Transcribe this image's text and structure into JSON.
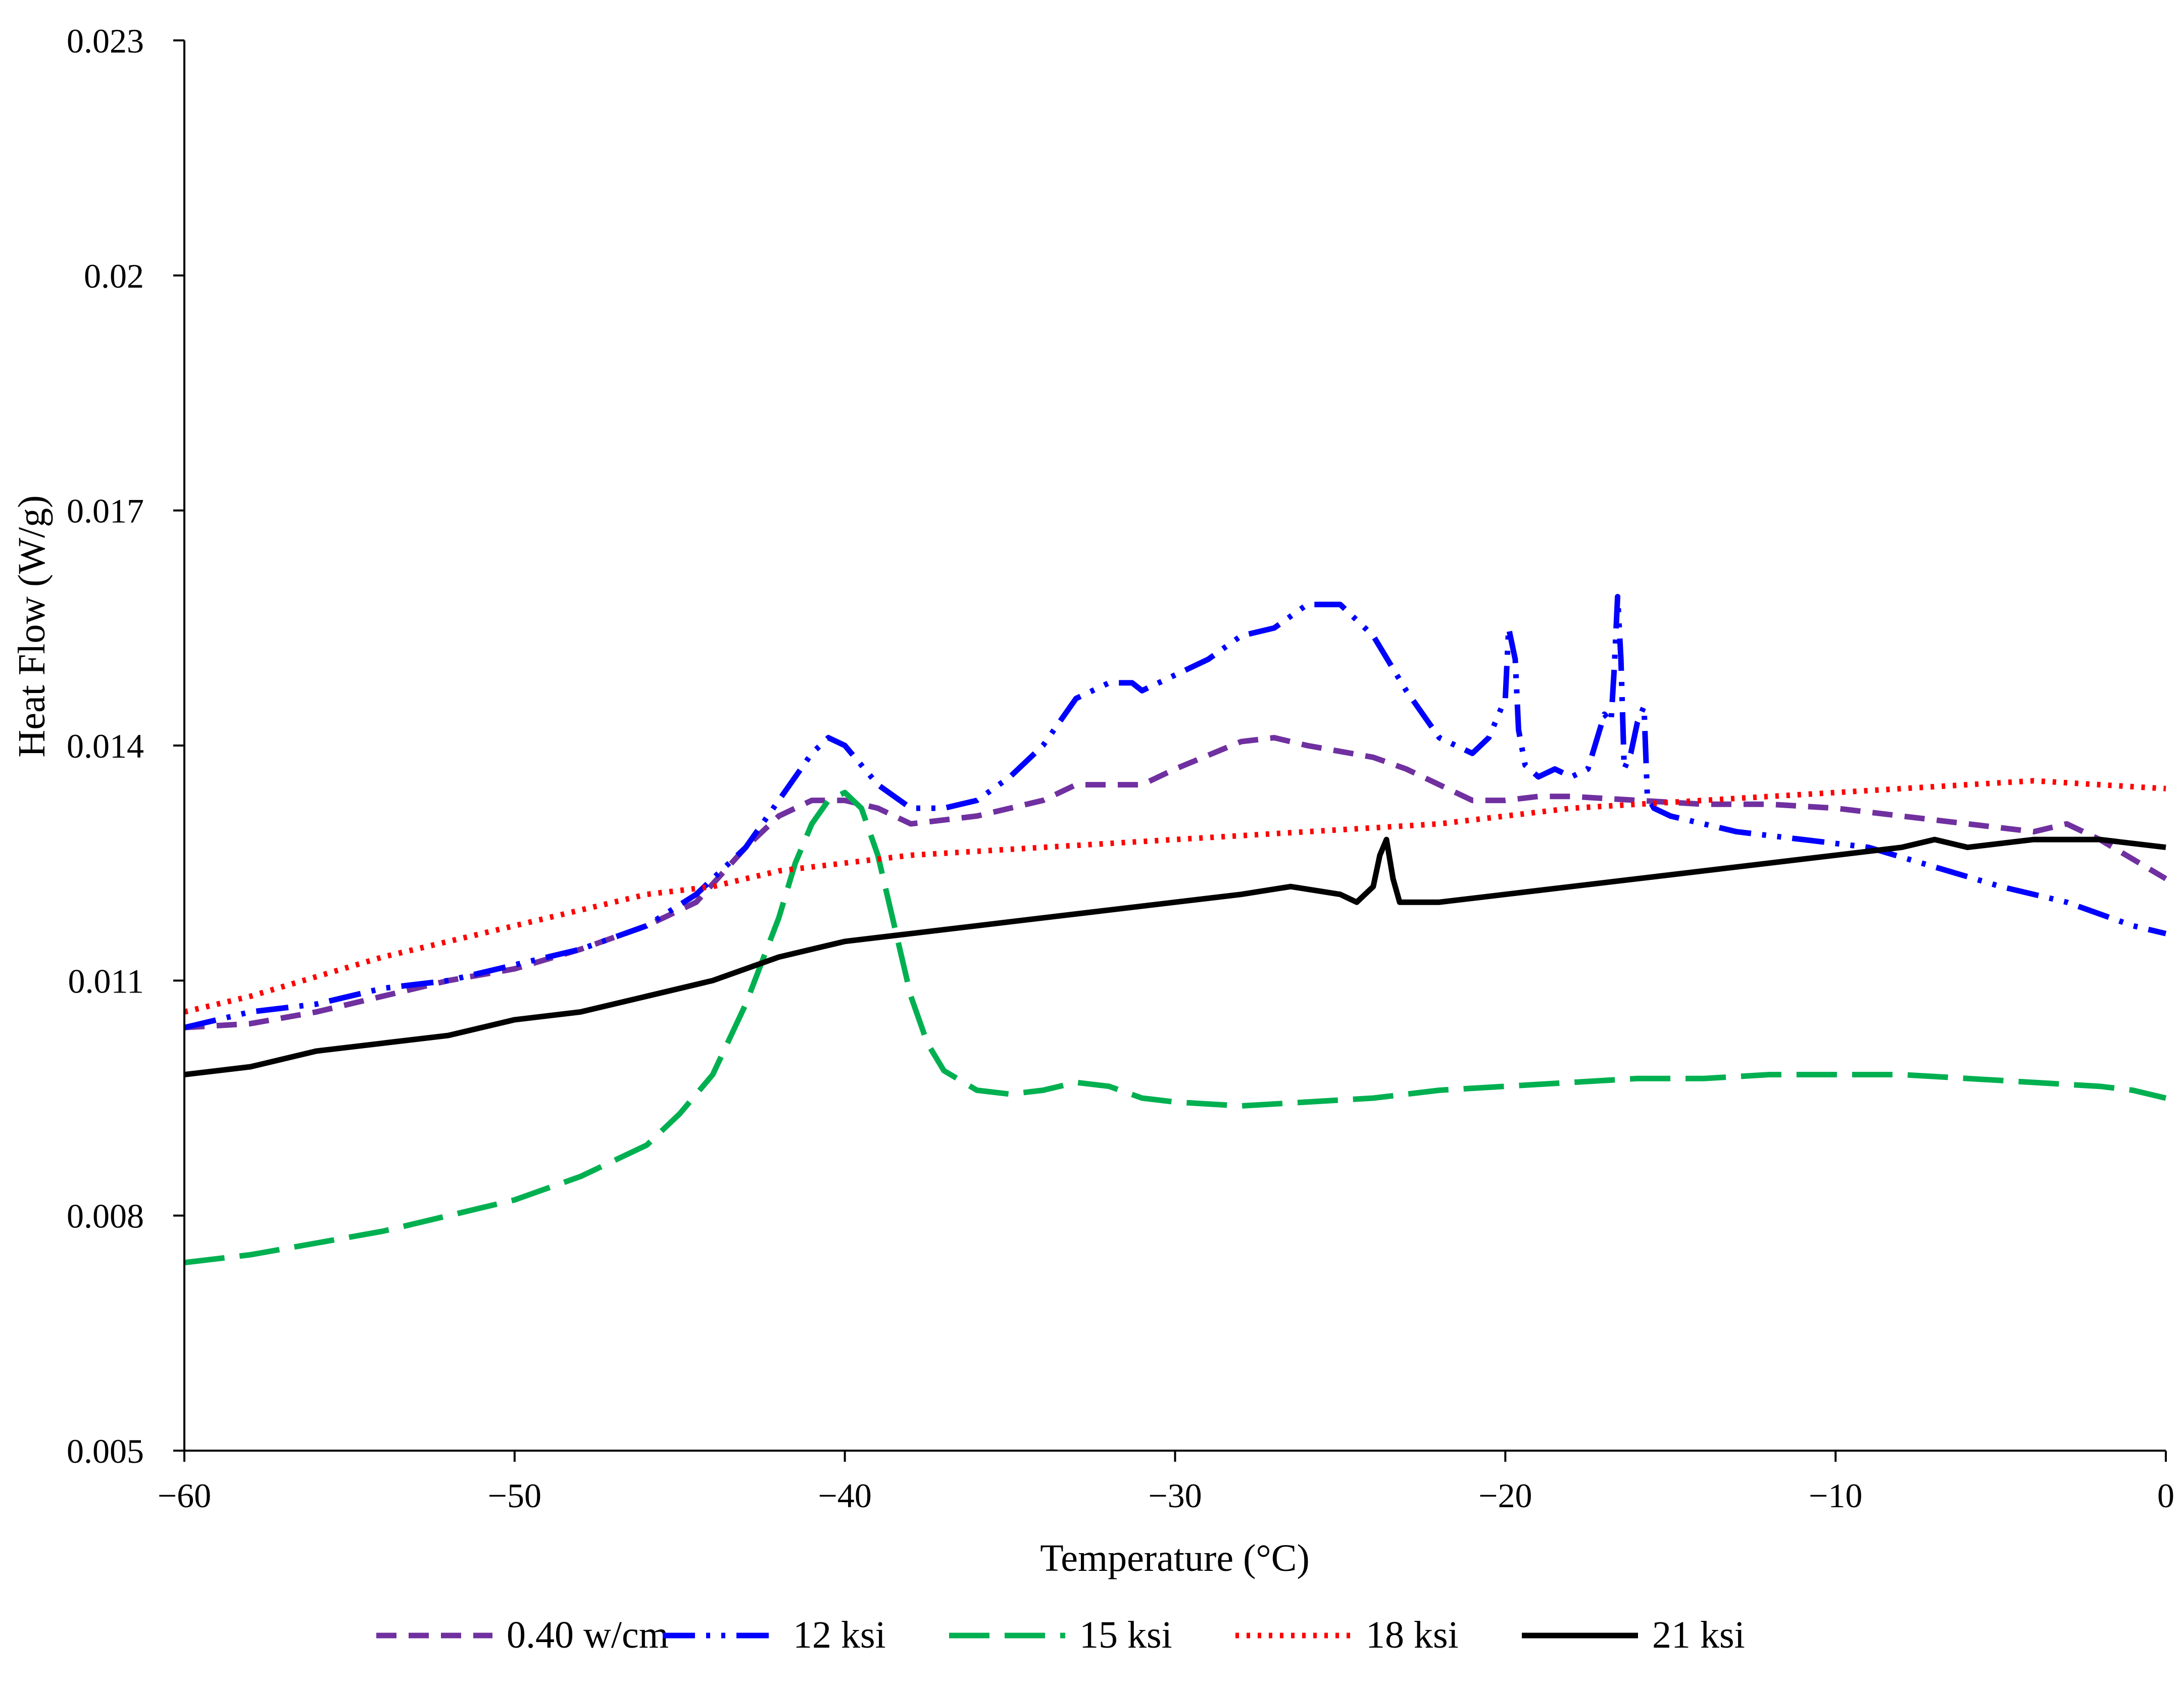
{
  "chart_data": {
    "type": "line",
    "xlabel": "Temperature (°C)",
    "ylabel": "Heat Flow (W/g)",
    "xlim": [
      -60,
      0
    ],
    "ylim": [
      0.005,
      0.023
    ],
    "x_ticks": [
      -60,
      -50,
      -40,
      -30,
      -20,
      -10,
      0
    ],
    "x_tick_labels": [
      "−60",
      "−50",
      "−40",
      "−30",
      "−20",
      "−10",
      "0"
    ],
    "y_ticks": [
      0.005,
      0.008,
      0.011,
      0.014,
      0.017,
      0.02,
      0.023
    ],
    "y_tick_labels": [
      "0.005",
      "0.008",
      "0.011",
      "0.014",
      "0.017",
      "0.02",
      "0.023"
    ],
    "grid": false,
    "legend_position": "bottom",
    "series": [
      {
        "name": "0.40 w/cm",
        "color": "#7030A0",
        "dash": "dashed",
        "points": [
          [
            -60,
            0.0104
          ],
          [
            -58,
            0.01045
          ],
          [
            -56,
            0.0106
          ],
          [
            -54,
            0.0108
          ],
          [
            -52,
            0.011
          ],
          [
            -50,
            0.01115
          ],
          [
            -48,
            0.0114
          ],
          [
            -46,
            0.0117
          ],
          [
            -44.5,
            0.012
          ],
          [
            -43,
            0.0127
          ],
          [
            -42,
            0.0131
          ],
          [
            -41,
            0.0133
          ],
          [
            -40,
            0.0133
          ],
          [
            -39,
            0.0132
          ],
          [
            -38,
            0.013
          ],
          [
            -36,
            0.0131
          ],
          [
            -34,
            0.0133
          ],
          [
            -33,
            0.0135
          ],
          [
            -31,
            0.0135
          ],
          [
            -30,
            0.0137
          ],
          [
            -28,
            0.01405
          ],
          [
            -27,
            0.0141
          ],
          [
            -26,
            0.014
          ],
          [
            -24,
            0.01385
          ],
          [
            -23,
            0.0137
          ],
          [
            -22,
            0.0135
          ],
          [
            -21,
            0.0133
          ],
          [
            -20,
            0.0133
          ],
          [
            -19,
            0.01335
          ],
          [
            -18,
            0.01335
          ],
          [
            -16,
            0.0133
          ],
          [
            -14,
            0.01325
          ],
          [
            -12,
            0.01325
          ],
          [
            -10,
            0.0132
          ],
          [
            -8,
            0.0131
          ],
          [
            -6,
            0.013
          ],
          [
            -4,
            0.0129
          ],
          [
            -3,
            0.013
          ],
          [
            -2,
            0.0128
          ],
          [
            -1,
            0.01255
          ],
          [
            0,
            0.0123
          ]
        ]
      },
      {
        "name": "12 ksi",
        "color": "#0000FF",
        "dash": "dash-dot-dot",
        "points": [
          [
            -60,
            0.0104
          ],
          [
            -58,
            0.0106
          ],
          [
            -56,
            0.0107
          ],
          [
            -54,
            0.0109
          ],
          [
            -52,
            0.011
          ],
          [
            -50,
            0.0112
          ],
          [
            -48,
            0.0114
          ],
          [
            -46,
            0.0117
          ],
          [
            -44.5,
            0.0121
          ],
          [
            -43,
            0.0127
          ],
          [
            -42,
            0.0133
          ],
          [
            -41,
            0.0139
          ],
          [
            -40.5,
            0.0141
          ],
          [
            -40,
            0.014
          ],
          [
            -39,
            0.0135
          ],
          [
            -38,
            0.0132
          ],
          [
            -37,
            0.0132
          ],
          [
            -36,
            0.0133
          ],
          [
            -35,
            0.0136
          ],
          [
            -34,
            0.014
          ],
          [
            -33,
            0.0146
          ],
          [
            -32,
            0.0148
          ],
          [
            -31.3,
            0.0148
          ],
          [
            -31,
            0.0147
          ],
          [
            -30,
            0.0149
          ],
          [
            -29,
            0.0151
          ],
          [
            -28,
            0.0154
          ],
          [
            -27,
            0.0155
          ],
          [
            -26,
            0.0158
          ],
          [
            -25,
            0.0158
          ],
          [
            -24,
            0.0154
          ],
          [
            -23,
            0.0147
          ],
          [
            -22,
            0.0141
          ],
          [
            -21,
            0.0139
          ],
          [
            -20.5,
            0.0141
          ],
          [
            -20,
            0.0146
          ],
          [
            -19.9,
            0.0155
          ],
          [
            -19.7,
            0.0151
          ],
          [
            -19.6,
            0.0142
          ],
          [
            -19.4,
            0.01375
          ],
          [
            -19,
            0.0136
          ],
          [
            -18.5,
            0.0137
          ],
          [
            -18,
            0.0136
          ],
          [
            -17.5,
            0.0137
          ],
          [
            -17,
            0.0144
          ],
          [
            -16.8,
            0.0143
          ],
          [
            -16.7,
            0.015
          ],
          [
            -16.6,
            0.0159
          ],
          [
            -16.5,
            0.0151
          ],
          [
            -16.4,
            0.0137
          ],
          [
            -16.2,
            0.0139
          ],
          [
            -16,
            0.0143
          ],
          [
            -15.8,
            0.0145
          ],
          [
            -15.7,
            0.01335
          ],
          [
            -15.5,
            0.0132
          ],
          [
            -15,
            0.0131
          ],
          [
            -13,
            0.0129
          ],
          [
            -11,
            0.0128
          ],
          [
            -9,
            0.0127
          ],
          [
            -7,
            0.01245
          ],
          [
            -5,
            0.0122
          ],
          [
            -3,
            0.012
          ],
          [
            -1,
            0.0117
          ],
          [
            0,
            0.0116
          ]
        ]
      },
      {
        "name": "15 ksi",
        "color": "#00B050",
        "dash": "long-dash",
        "points": [
          [
            -60,
            0.0074
          ],
          [
            -58,
            0.0075
          ],
          [
            -56,
            0.00765
          ],
          [
            -54,
            0.0078
          ],
          [
            -52,
            0.008
          ],
          [
            -50,
            0.0082
          ],
          [
            -48,
            0.0085
          ],
          [
            -46,
            0.0089
          ],
          [
            -45,
            0.0093
          ],
          [
            -44,
            0.0098
          ],
          [
            -43,
            0.0107
          ],
          [
            -42,
            0.0118
          ],
          [
            -41.5,
            0.0125
          ],
          [
            -41,
            0.013
          ],
          [
            -40.5,
            0.0133
          ],
          [
            -40,
            0.0134
          ],
          [
            -39.5,
            0.0132
          ],
          [
            -39,
            0.0126
          ],
          [
            -38.5,
            0.0117
          ],
          [
            -38,
            0.0108
          ],
          [
            -37.5,
            0.0102
          ],
          [
            -37,
            0.00985
          ],
          [
            -36,
            0.0096
          ],
          [
            -35,
            0.00955
          ],
          [
            -34,
            0.0096
          ],
          [
            -33,
            0.0097
          ],
          [
            -32,
            0.00965
          ],
          [
            -31,
            0.0095
          ],
          [
            -30,
            0.00945
          ],
          [
            -28,
            0.0094
          ],
          [
            -26,
            0.00945
          ],
          [
            -24,
            0.0095
          ],
          [
            -22,
            0.0096
          ],
          [
            -20,
            0.00965
          ],
          [
            -18,
            0.0097
          ],
          [
            -16,
            0.00975
          ],
          [
            -14,
            0.00975
          ],
          [
            -12,
            0.0098
          ],
          [
            -10,
            0.0098
          ],
          [
            -8,
            0.0098
          ],
          [
            -6,
            0.00975
          ],
          [
            -4,
            0.0097
          ],
          [
            -2,
            0.00965
          ],
          [
            -1,
            0.0096
          ],
          [
            0,
            0.0095
          ]
        ]
      },
      {
        "name": "18 ksi",
        "color": "#FF0000",
        "dash": "dotted",
        "points": [
          [
            -60,
            0.0106
          ],
          [
            -58,
            0.0108
          ],
          [
            -56,
            0.01105
          ],
          [
            -54,
            0.0113
          ],
          [
            -52,
            0.0115
          ],
          [
            -50,
            0.0117
          ],
          [
            -48,
            0.0119
          ],
          [
            -46,
            0.0121
          ],
          [
            -44,
            0.0122
          ],
          [
            -42,
            0.0124
          ],
          [
            -40,
            0.0125
          ],
          [
            -38,
            0.0126
          ],
          [
            -36,
            0.01265
          ],
          [
            -34,
            0.0127
          ],
          [
            -32,
            0.01275
          ],
          [
            -30,
            0.0128
          ],
          [
            -28,
            0.01285
          ],
          [
            -26,
            0.0129
          ],
          [
            -24,
            0.01295
          ],
          [
            -22,
            0.013
          ],
          [
            -20,
            0.0131
          ],
          [
            -18,
            0.0132
          ],
          [
            -16,
            0.01325
          ],
          [
            -14,
            0.0133
          ],
          [
            -12,
            0.01335
          ],
          [
            -10,
            0.0134
          ],
          [
            -8,
            0.01345
          ],
          [
            -6,
            0.0135
          ],
          [
            -4,
            0.01355
          ],
          [
            -2,
            0.0135
          ],
          [
            0,
            0.01345
          ]
        ]
      },
      {
        "name": "21 ksi",
        "color": "#000000",
        "dash": "solid",
        "points": [
          [
            -60,
            0.0098
          ],
          [
            -58,
            0.0099
          ],
          [
            -56,
            0.0101
          ],
          [
            -54,
            0.0102
          ],
          [
            -52,
            0.0103
          ],
          [
            -50,
            0.0105
          ],
          [
            -48,
            0.0106
          ],
          [
            -46,
            0.0108
          ],
          [
            -44,
            0.011
          ],
          [
            -42,
            0.0113
          ],
          [
            -40,
            0.0115
          ],
          [
            -38,
            0.0116
          ],
          [
            -36,
            0.0117
          ],
          [
            -34,
            0.0118
          ],
          [
            -32,
            0.0119
          ],
          [
            -30,
            0.012
          ],
          [
            -28,
            0.0121
          ],
          [
            -26.5,
            0.0122
          ],
          [
            -25,
            0.0121
          ],
          [
            -24.5,
            0.012
          ],
          [
            -24,
            0.0122
          ],
          [
            -23.8,
            0.0126
          ],
          [
            -23.6,
            0.0128
          ],
          [
            -23.4,
            0.0123
          ],
          [
            -23.2,
            0.012
          ],
          [
            -22,
            0.012
          ],
          [
            -20,
            0.0121
          ],
          [
            -18,
            0.0122
          ],
          [
            -16,
            0.0123
          ],
          [
            -14,
            0.0124
          ],
          [
            -12,
            0.0125
          ],
          [
            -10,
            0.0126
          ],
          [
            -8,
            0.0127
          ],
          [
            -7,
            0.0128
          ],
          [
            -6,
            0.0127
          ],
          [
            -4,
            0.0128
          ],
          [
            -2,
            0.0128
          ],
          [
            0,
            0.0127
          ]
        ]
      }
    ]
  }
}
